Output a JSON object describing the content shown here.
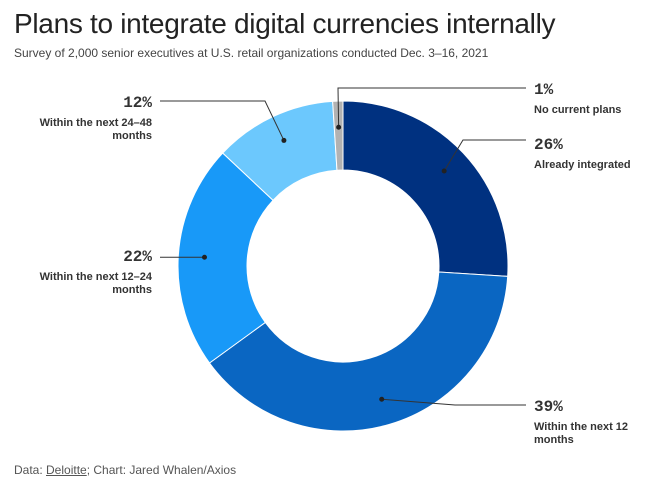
{
  "header": {
    "title": "Plans to integrate digital currencies internally",
    "subtitle": "Survey of 2,000 senior executives at U.S. retail organizations conducted Dec. 3–16, 2021"
  },
  "footer": {
    "data_label": "Data: ",
    "source": "Deloitte",
    "credit": "; Chart: Jared Whalen/Axios"
  },
  "chart_data": {
    "type": "pie",
    "variant": "donut",
    "title": "Plans to integrate digital currencies internally",
    "slices": [
      {
        "label": "Already integrated",
        "pct_text": "26%",
        "value": 26,
        "color": "#003180",
        "label_lines": [
          "Already integrated"
        ]
      },
      {
        "label": "Within the next 12 months",
        "pct_text": "39%",
        "value": 39,
        "color": "#0a66c2",
        "label_lines": [
          "Within the next 12",
          "months"
        ]
      },
      {
        "label": "Within the next 12–24 months",
        "pct_text": "22%",
        "value": 22,
        "color": "#1899f8",
        "label_lines": [
          "Within the next 12–24",
          "months"
        ]
      },
      {
        "label": "Within the next 24–48 months",
        "pct_text": "12%",
        "value": 12,
        "color": "#6cc8fd",
        "label_lines": [
          "Within the next 24–48",
          "months"
        ]
      },
      {
        "label": "No current plans",
        "pct_text": "1%",
        "value": 1,
        "color": "#b2b2b2",
        "label_lines": [
          "No current plans"
        ]
      }
    ]
  }
}
